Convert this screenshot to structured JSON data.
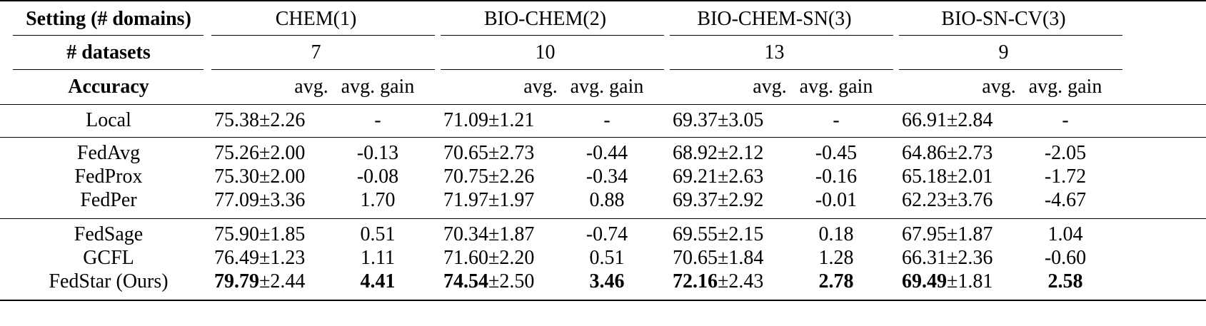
{
  "header": {
    "setting_label": "Setting (# domains)",
    "datasets_label": "# datasets",
    "accuracy_label": "Accuracy",
    "groups": [
      {
        "name": "CHEM(1)",
        "datasets": "7"
      },
      {
        "name": "BIO-CHEM(2)",
        "datasets": "10"
      },
      {
        "name": "BIO-CHEM-SN(3)",
        "datasets": "13"
      },
      {
        "name": "BIO-SN-CV(3)",
        "datasets": "9"
      }
    ],
    "sub_avg": "avg.",
    "sub_gain": "avg. gain"
  },
  "pm": "±",
  "rows": [
    {
      "name": "Local",
      "cells": [
        {
          "avg": "75.38",
          "std": "2.26",
          "gain": "-"
        },
        {
          "avg": "71.09",
          "std": "1.21",
          "gain": "-"
        },
        {
          "avg": "69.37",
          "std": "3.05",
          "gain": "-"
        },
        {
          "avg": "66.91",
          "std": "2.84",
          "gain": "-"
        }
      ]
    },
    {
      "name": "FedAvg",
      "cells": [
        {
          "avg": "75.26",
          "std": "2.00",
          "gain": "-0.13"
        },
        {
          "avg": "70.65",
          "std": "2.73",
          "gain": "-0.44"
        },
        {
          "avg": "68.92",
          "std": "2.12",
          "gain": "-0.45"
        },
        {
          "avg": "64.86",
          "std": "2.73",
          "gain": "-2.05"
        }
      ]
    },
    {
      "name": "FedProx",
      "cells": [
        {
          "avg": "75.30",
          "std": "2.00",
          "gain": "-0.08"
        },
        {
          "avg": "70.75",
          "std": "2.26",
          "gain": "-0.34"
        },
        {
          "avg": "69.21",
          "std": "2.63",
          "gain": "-0.16"
        },
        {
          "avg": "65.18",
          "std": "2.01",
          "gain": "-1.72"
        }
      ]
    },
    {
      "name": "FedPer",
      "cells": [
        {
          "avg": "77.09",
          "std": "3.36",
          "gain": "1.70"
        },
        {
          "avg": "71.97",
          "std": "1.97",
          "gain": "0.88"
        },
        {
          "avg": "69.37",
          "std": "2.92",
          "gain": "-0.01"
        },
        {
          "avg": "62.23",
          "std": "3.76",
          "gain": "-4.67"
        }
      ]
    },
    {
      "name": "FedSage",
      "cells": [
        {
          "avg": "75.90",
          "std": "1.85",
          "gain": "0.51"
        },
        {
          "avg": "70.34",
          "std": "1.87",
          "gain": "-0.74"
        },
        {
          "avg": "69.55",
          "std": "2.15",
          "gain": "0.18"
        },
        {
          "avg": "67.95",
          "std": "1.87",
          "gain": "1.04"
        }
      ]
    },
    {
      "name": "GCFL",
      "cells": [
        {
          "avg": "76.49",
          "std": "1.23",
          "gain": "1.11"
        },
        {
          "avg": "71.60",
          "std": "2.20",
          "gain": "0.51"
        },
        {
          "avg": "70.65",
          "std": "1.84",
          "gain": "1.28"
        },
        {
          "avg": "66.31",
          "std": "2.36",
          "gain": "-0.60"
        }
      ]
    },
    {
      "name": "FedStar (Ours)",
      "bold": true,
      "cells": [
        {
          "avg": "79.79",
          "std": "2.44",
          "gain": "4.41"
        },
        {
          "avg": "74.54",
          "std": "2.50",
          "gain": "3.46"
        },
        {
          "avg": "72.16",
          "std": "2.43",
          "gain": "2.78"
        },
        {
          "avg": "69.49",
          "std": "1.81",
          "gain": "2.58"
        }
      ]
    }
  ]
}
